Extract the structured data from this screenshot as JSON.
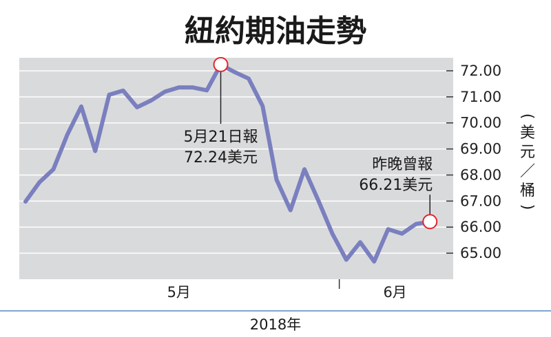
{
  "chart_data": {
    "type": "line",
    "title": "紐約期油走勢",
    "ylabel": [
      "(",
      "美",
      "元",
      "／",
      "桶",
      ")"
    ],
    "yticks": [
      "72.00",
      "71.00",
      "70.00",
      "69.00",
      "68.00",
      "67.00",
      "66.00",
      "65.00"
    ],
    "ylim": [
      64.0,
      72.5
    ],
    "xlabel": "2018年",
    "month_labels": [
      {
        "label": "5月",
        "x": 11
      },
      {
        "label": "6月",
        "x": 26.5
      }
    ],
    "month_divider_x": 22.5,
    "x": [
      0,
      1,
      2,
      3,
      4,
      5,
      6,
      7,
      8,
      9,
      10,
      11,
      12,
      13,
      14,
      15,
      16,
      17,
      18,
      19,
      20,
      21,
      22,
      23,
      24,
      25,
      26,
      27,
      28,
      29
    ],
    "values": [
      66.98,
      67.72,
      68.22,
      69.55,
      70.63,
      68.92,
      71.08,
      71.24,
      70.6,
      70.86,
      71.2,
      71.36,
      71.36,
      71.25,
      72.24,
      71.95,
      71.7,
      70.65,
      67.82,
      66.65,
      68.22,
      67.02,
      65.75,
      64.75,
      65.42,
      64.68,
      65.92,
      65.75,
      66.12,
      66.21
    ],
    "annotations": [
      {
        "index": 14,
        "lines": [
          "5月21日報",
          "72.24美元"
        ],
        "position": "below"
      },
      {
        "index": 29,
        "lines": [
          "昨晚曾報",
          "66.21美元"
        ],
        "position": "above-left"
      }
    ],
    "colors": {
      "line": "#7a7fbf",
      "plot_bg": "#d9dadb",
      "marker": "#e3242b",
      "grid": "#ffffff"
    }
  }
}
